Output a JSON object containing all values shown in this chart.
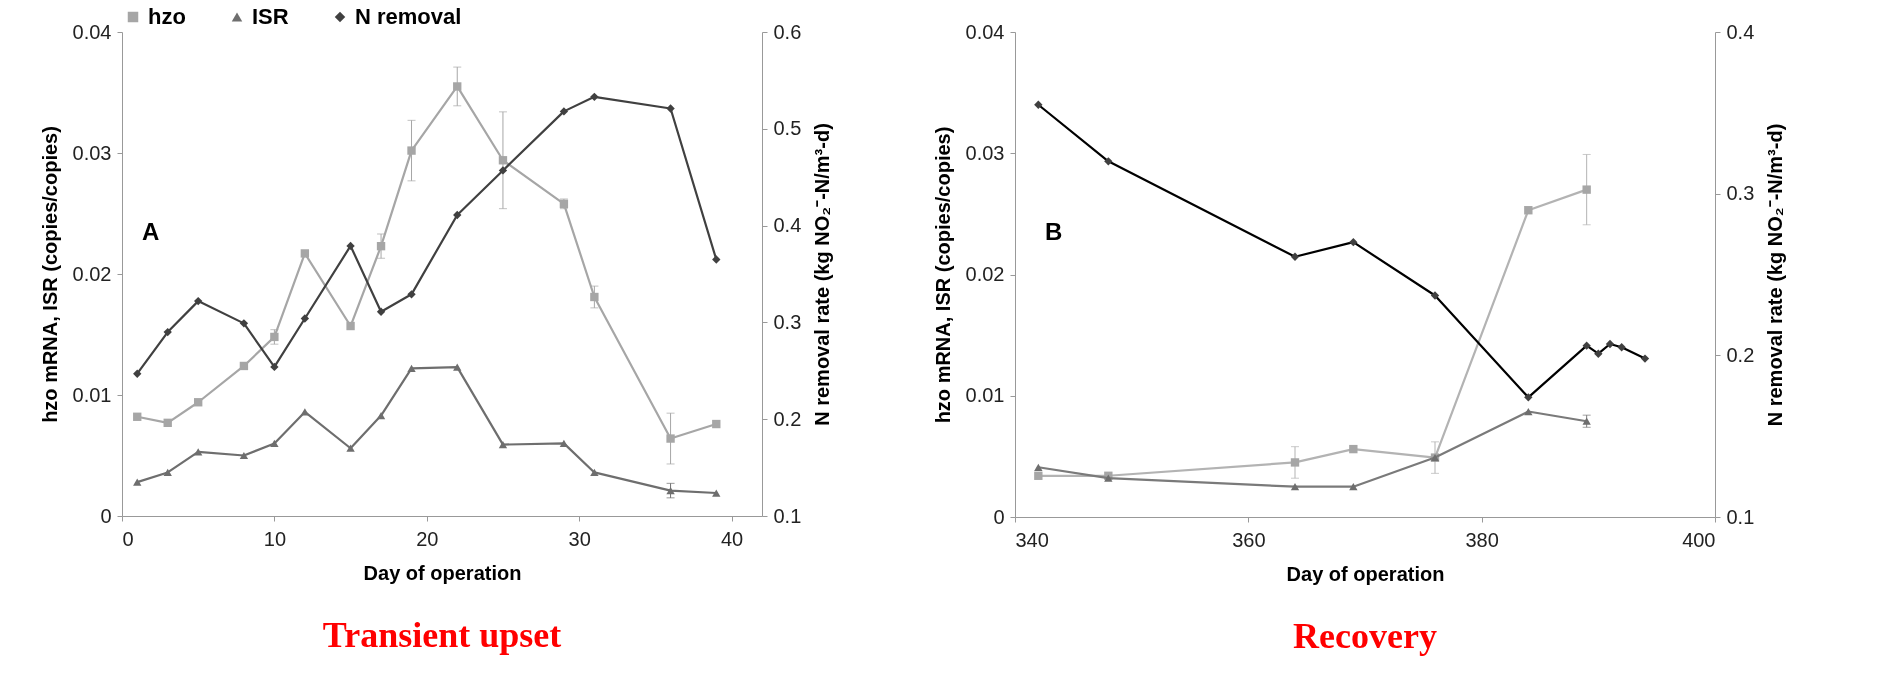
{
  "chart_data": [
    {
      "type": "line",
      "x": [
        1,
        3,
        5,
        8,
        10,
        12,
        15,
        17,
        19,
        22,
        25,
        29,
        31,
        36,
        39
      ],
      "xlim": [
        0,
        42
      ],
      "xticks": [
        0,
        10,
        20,
        30,
        40
      ],
      "ylim": [
        0,
        0.04
      ],
      "yticks": [
        0,
        0.01,
        0.02,
        0.03,
        0.04
      ],
      "y2lim": [
        0.1,
        0.6
      ],
      "y2ticks": [
        0.1,
        0.2,
        0.3,
        0.4,
        0.5,
        0.6
      ],
      "xlabel": "Day of operation",
      "ylabel": "hzo mRNA,  ISR (copies/copies)",
      "y2label": "N removal rate (kg NO₂⁻-N/m³-d)",
      "legend": "top",
      "grid": false,
      "annotations": [
        "A",
        "Transient upset"
      ],
      "series": [
        {
          "name": "hzo",
          "color": "#a6a6a6",
          "marker": "square",
          "values": [
            0.0082,
            0.0077,
            0.0094,
            0.0124,
            0.0148,
            0.0217,
            0.0157,
            0.0223,
            0.0302,
            0.0355,
            0.0294,
            0.0258,
            0.0181,
            0.0064,
            0.0076
          ],
          "errors": [
            null,
            null,
            null,
            null,
            0.0006,
            null,
            null,
            0.001,
            0.0025,
            0.0016,
            0.004,
            0.0004,
            0.0009,
            0.0021,
            null
          ]
        },
        {
          "name": "ISR",
          "color": "#6e6e6e",
          "marker": "triangle",
          "values": [
            0.0028,
            0.0036,
            0.0053,
            0.005,
            0.006,
            0.0086,
            0.0056,
            0.0083,
            0.0122,
            0.0123,
            0.0059,
            0.006,
            0.0036,
            0.0021,
            0.0019
          ],
          "errors": [
            null,
            null,
            null,
            null,
            null,
            null,
            null,
            null,
            null,
            null,
            null,
            null,
            null,
            0.0006,
            null
          ]
        },
        {
          "name": "N removal",
          "color": "#404040",
          "marker": "diamond",
          "axis": "y2",
          "values": [
            0.247,
            0.29,
            0.322,
            0.299,
            0.254,
            0.304,
            0.379,
            0.311,
            0.329,
            0.411,
            0.457,
            0.518,
            0.533,
            0.521,
            0.365
          ]
        }
      ]
    },
    {
      "type": "line",
      "x": [
        342,
        348,
        364,
        369,
        376,
        384,
        389
      ],
      "xlim": [
        340,
        400
      ],
      "xticks": [
        340,
        360,
        380,
        400
      ],
      "ylim": [
        0,
        0.04
      ],
      "yticks": [
        0,
        0.01,
        0.02,
        0.03,
        0.04
      ],
      "y2lim": [
        0.1,
        0.4
      ],
      "y2ticks": [
        0.1,
        0.2,
        0.3,
        0.4
      ],
      "xlabel": "Day of operation",
      "ylabel": "hzo mRNA, ISR (copies/copies)",
      "y2label": "N removal rate (kg NO₂⁻-N/m³-d)",
      "legend": "top",
      "grid": false,
      "annotations": [
        "B",
        "Recovery"
      ],
      "series": [
        {
          "name": "hzo",
          "color": "#b3b3b3",
          "marker": "square",
          "values": [
            0.0034,
            0.0034,
            0.0045,
            0.0056,
            0.0049,
            0.0253,
            0.027
          ],
          "errors": [
            null,
            null,
            0.0013,
            null,
            0.0013,
            null,
            0.0029
          ]
        },
        {
          "name": "ISR",
          "color": "#7a7a7a",
          "marker": "triangle",
          "values": [
            0.0041,
            0.0032,
            0.0025,
            0.0025,
            0.0049,
            0.0087,
            0.0079
          ],
          "errors": [
            null,
            null,
            null,
            null,
            null,
            null,
            0.0005
          ]
        },
        {
          "name": "N removal",
          "color": "#000000",
          "marker": "diamond",
          "axis": "y2",
          "x": [
            342,
            348,
            364,
            369,
            376,
            384,
            389,
            390,
            391,
            392,
            394
          ],
          "values": [
            0.355,
            0.32,
            0.261,
            0.27,
            0.237,
            0.174,
            0.206,
            0.201,
            0.207,
            0.205,
            0.198
          ]
        }
      ]
    }
  ]
}
